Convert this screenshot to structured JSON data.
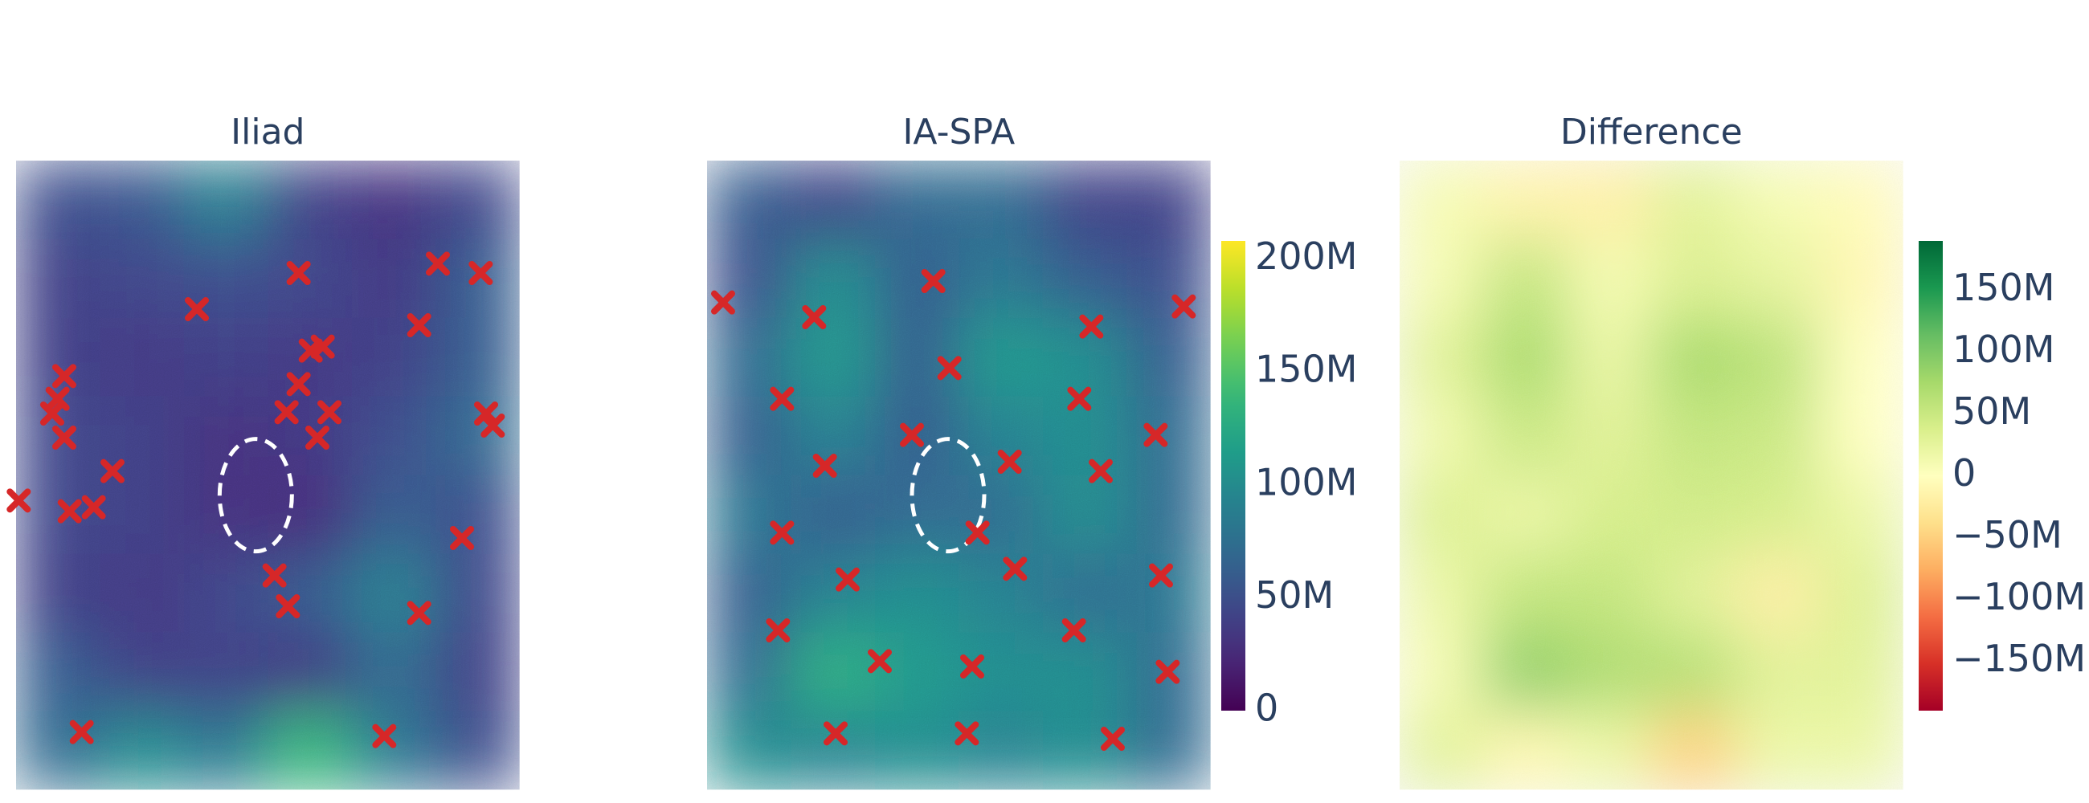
{
  "chart_data": [
    {
      "type": "heatmap",
      "title": "Iliad",
      "colorscale": "Viridis",
      "xlim": [
        0,
        376
      ],
      "ylim": [
        0,
        470
      ],
      "zlim": [
        0,
        208000000
      ],
      "z": [
        [
          50000000.0,
          55000000.0,
          90000000.0,
          40000000.0,
          30000000.0,
          45000000.0
        ],
        [
          40000000.0,
          45000000.0,
          50000000.0,
          45000000.0,
          35000000.0,
          60000000.0
        ],
        [
          40000000.0,
          35000000.0,
          40000000.0,
          35000000.0,
          40000000.0,
          60000000.0
        ],
        [
          45000000.0,
          40000000.0,
          30000000.0,
          35000000.0,
          50000000.0,
          70000000.0
        ],
        [
          45000000.0,
          40000000.0,
          30000000.0,
          25000000.0,
          60000000.0,
          50000000.0
        ],
        [
          40000000.0,
          35000000.0,
          45000000.0,
          60000000.0,
          90000000.0,
          45000000.0
        ],
        [
          60000000.0,
          40000000.0,
          40000000.0,
          35000000.0,
          70000000.0,
          40000000.0
        ],
        [
          70000000.0,
          100000000.0,
          80000000.0,
          140000000.0,
          80000000.0,
          50000000.0
        ]
      ],
      "markers": {
        "color": "#d62728",
        "x": [
          211,
          315,
          347,
          135,
          301,
          220,
          229,
          36,
          211,
          31,
          27,
          202,
          234,
          351,
          356,
          36,
          225,
          72,
          2,
          40,
          58,
          333,
          193,
          203,
          301,
          49,
          275
        ],
        "y": [
          84,
          77,
          84,
          111,
          123,
          142,
          139,
          161,
          167,
          178,
          189,
          188,
          188,
          189,
          198,
          207,
          207,
          232,
          254,
          262,
          259,
          282,
          310,
          333,
          338,
          427,
          430
        ]
      }
    },
    {
      "type": "heatmap",
      "title": "IA-SPA",
      "colorscale": "Viridis",
      "xlim": [
        0,
        376
      ],
      "ylim": [
        0,
        470
      ],
      "zlim": [
        0,
        208000000
      ],
      "zticks": [
        0,
        {
          "value": 50000000,
          "label": "50M"
        },
        {
          "value": 100000000,
          "label": "100M"
        },
        {
          "value": 150000000,
          "label": "150M"
        },
        {
          "value": 200000000,
          "label": "200M"
        }
      ],
      "z": [
        [
          60000000.0,
          40000000.0,
          70000000.0,
          70000000.0,
          40000000.0,
          40000000.0
        ],
        [
          50000000.0,
          100000000.0,
          60000000.0,
          80000000.0,
          60000000.0,
          50000000.0
        ],
        [
          70000000.0,
          110000000.0,
          60000000.0,
          110000000.0,
          100000000.0,
          60000000.0
        ],
        [
          60000000.0,
          90000000.0,
          60000000.0,
          90000000.0,
          100000000.0,
          70000000.0
        ],
        [
          80000000.0,
          60000000.0,
          70000000.0,
          70000000.0,
          100000000.0,
          70000000.0
        ],
        [
          60000000.0,
          90000000.0,
          100000000.0,
          90000000.0,
          70000000.0,
          80000000.0
        ],
        [
          70000000.0,
          130000000.0,
          110000000.0,
          100000000.0,
          100000000.0,
          70000000.0
        ],
        [
          100000000.0,
          90000000.0,
          100000000.0,
          90000000.0,
          100000000.0,
          70000000.0
        ]
      ],
      "markers": {
        "color": "#d62728",
        "x": [
          12,
          169,
          80,
          356,
          287,
          181,
          56,
          278,
          335,
          153,
          88,
          226,
          294,
          56,
          202,
          230,
          105,
          339,
          53,
          274,
          129,
          198,
          344,
          96,
          194,
          303
        ],
        "y": [
          106,
          90,
          117,
          109,
          124,
          155,
          178,
          178,
          205,
          205,
          228,
          225,
          232,
          278,
          278,
          305,
          313,
          310,
          351,
          351,
          374,
          378,
          382,
          428,
          428,
          432
        ]
      }
    },
    {
      "type": "heatmap",
      "title": "Difference",
      "colorscale": "RdYlGn",
      "xlim": [
        0,
        376
      ],
      "ylim": [
        0,
        470
      ],
      "zlim": [
        -190000000,
        190000000
      ],
      "zticks": [
        {
          "value": -150000000,
          "label": "−150M"
        },
        {
          "value": -100000000,
          "label": "−100M"
        },
        {
          "value": -50000000,
          "label": "−50M"
        },
        0,
        {
          "value": 50000000,
          "label": "50M"
        },
        {
          "value": 100000000,
          "label": "100M"
        },
        {
          "value": 150000000,
          "label": "150M"
        }
      ],
      "z": [
        [
          10000000.0,
          -15000000.0,
          -20000000.0,
          30000000.0,
          10000000.0,
          -5000000.0
        ],
        [
          10000000.0,
          55000000.0,
          10000000.0,
          35000000.0,
          25000000.0,
          -10000000.0
        ],
        [
          30000000.0,
          75000000.0,
          20000000.0,
          75000000.0,
          60000000.0,
          0
        ],
        [
          15000000.0,
          50000000.0,
          30000000.0,
          55000000.0,
          50000000.0,
          0
        ],
        [
          35000000.0,
          20000000.0,
          40000000.0,
          45000000.0,
          40000000.0,
          20000000.0
        ],
        [
          20000000.0,
          55000000.0,
          55000000.0,
          30000000.0,
          -20000000.0,
          35000000.0
        ],
        [
          10000000.0,
          90000000.0,
          70000000.0,
          65000000.0,
          30000000.0,
          30000000.0
        ],
        [
          30000000.0,
          -10000000.0,
          20000000.0,
          -50000000.0,
          20000000.0,
          20000000.0
        ]
      ]
    }
  ]
}
